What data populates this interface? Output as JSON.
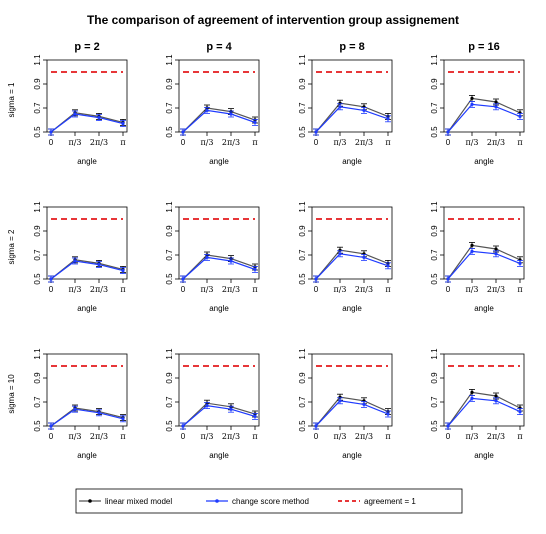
{
  "title": "The comparison of agreement of intervention group assignement",
  "columns": [
    "p = 2",
    "p = 4",
    "p = 8",
    "p = 16"
  ],
  "rows": [
    "sigma = 1",
    "sigma = 2",
    "sigma = 10"
  ],
  "xlabel": "angle",
  "xticks": [
    "0",
    "π/3",
    "2π/3",
    "π"
  ],
  "yticks": [
    "0.5",
    "0.7",
    "0.9",
    "1.1"
  ],
  "legend": {
    "lmm": "linear mixed model",
    "csm": "change score method",
    "agree": "agreement = 1"
  },
  "colors": {
    "lmm": "#000000",
    "csm": "#1f3bff",
    "agree": "#e41a1c",
    "lmm_line": "#555555"
  },
  "chart_data": {
    "type": "line",
    "title": "The comparison of agreement of intervention group assignement",
    "xlabel": "angle",
    "ylabel": "",
    "x": [
      "0",
      "π/3",
      "2π/3",
      "π"
    ],
    "ylim": [
      0.5,
      1.1
    ],
    "reference_line": 1.0,
    "legend_position": "bottom",
    "panels": [
      {
        "row": "sigma = 1",
        "col": "p = 2",
        "series": [
          {
            "name": "linear mixed model",
            "values": [
              0.5,
              0.66,
              0.63,
              0.58
            ]
          },
          {
            "name": "change score method",
            "values": [
              0.5,
              0.65,
              0.62,
              0.57
            ]
          }
        ]
      },
      {
        "row": "sigma = 1",
        "col": "p = 4",
        "series": [
          {
            "name": "linear mixed model",
            "values": [
              0.5,
              0.7,
              0.67,
              0.6
            ]
          },
          {
            "name": "change score method",
            "values": [
              0.5,
              0.68,
              0.65,
              0.58
            ]
          }
        ]
      },
      {
        "row": "sigma = 1",
        "col": "p = 8",
        "series": [
          {
            "name": "linear mixed model",
            "values": [
              0.5,
              0.74,
              0.71,
              0.63
            ]
          },
          {
            "name": "change score method",
            "values": [
              0.5,
              0.71,
              0.68,
              0.61
            ]
          }
        ]
      },
      {
        "row": "sigma = 1",
        "col": "p = 16",
        "series": [
          {
            "name": "linear mixed model",
            "values": [
              0.5,
              0.78,
              0.75,
              0.66
            ]
          },
          {
            "name": "change score method",
            "values": [
              0.5,
              0.73,
              0.71,
              0.63
            ]
          }
        ]
      },
      {
        "row": "sigma = 2",
        "col": "p = 2",
        "series": [
          {
            "name": "linear mixed model",
            "values": [
              0.5,
              0.66,
              0.63,
              0.58
            ]
          },
          {
            "name": "change score method",
            "values": [
              0.5,
              0.65,
              0.62,
              0.57
            ]
          }
        ]
      },
      {
        "row": "sigma = 2",
        "col": "p = 4",
        "series": [
          {
            "name": "linear mixed model",
            "values": [
              0.5,
              0.7,
              0.67,
              0.6
            ]
          },
          {
            "name": "change score method",
            "values": [
              0.5,
              0.68,
              0.65,
              0.58
            ]
          }
        ]
      },
      {
        "row": "sigma = 2",
        "col": "p = 8",
        "series": [
          {
            "name": "linear mixed model",
            "values": [
              0.5,
              0.74,
              0.71,
              0.63
            ]
          },
          {
            "name": "change score method",
            "values": [
              0.5,
              0.71,
              0.68,
              0.61
            ]
          }
        ]
      },
      {
        "row": "sigma = 2",
        "col": "p = 16",
        "series": [
          {
            "name": "linear mixed model",
            "values": [
              0.5,
              0.78,
              0.75,
              0.66
            ]
          },
          {
            "name": "change score method",
            "values": [
              0.5,
              0.73,
              0.71,
              0.63
            ]
          }
        ]
      },
      {
        "row": "sigma = 10",
        "col": "p = 2",
        "series": [
          {
            "name": "linear mixed model",
            "values": [
              0.5,
              0.65,
              0.62,
              0.57
            ]
          },
          {
            "name": "change score method",
            "values": [
              0.5,
              0.64,
              0.61,
              0.56
            ]
          }
        ]
      },
      {
        "row": "sigma = 10",
        "col": "p = 4",
        "series": [
          {
            "name": "linear mixed model",
            "values": [
              0.5,
              0.69,
              0.66,
              0.6
            ]
          },
          {
            "name": "change score method",
            "values": [
              0.5,
              0.67,
              0.64,
              0.58
            ]
          }
        ]
      },
      {
        "row": "sigma = 10",
        "col": "p = 8",
        "series": [
          {
            "name": "linear mixed model",
            "values": [
              0.5,
              0.74,
              0.71,
              0.62
            ]
          },
          {
            "name": "change score method",
            "values": [
              0.5,
              0.71,
              0.68,
              0.6
            ]
          }
        ]
      },
      {
        "row": "sigma = 10",
        "col": "p = 16",
        "series": [
          {
            "name": "linear mixed model",
            "values": [
              0.5,
              0.78,
              0.75,
              0.65
            ]
          },
          {
            "name": "change score method",
            "values": [
              0.5,
              0.73,
              0.71,
              0.62
            ]
          }
        ]
      }
    ]
  }
}
